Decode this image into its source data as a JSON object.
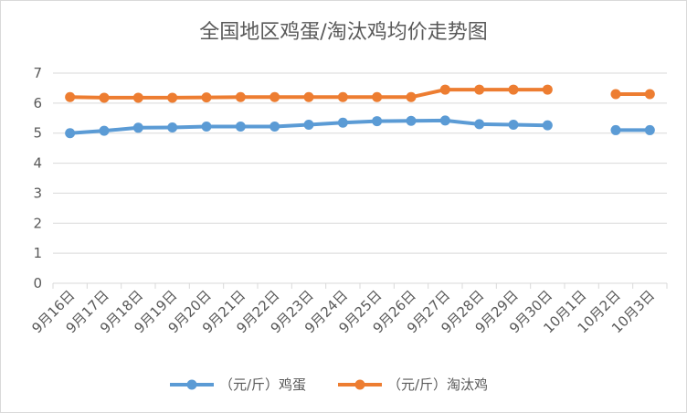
{
  "chart_data": {
    "type": "line",
    "title": "全国地区鸡蛋/淘汰鸡均价走势图",
    "categories": [
      "9月16日",
      "9月17日",
      "9月18日",
      "9月19日",
      "9月20日",
      "9月21日",
      "9月22日",
      "9月23日",
      "9月24日",
      "9月25日",
      "9月26日",
      "9月27日",
      "9月28日",
      "9月29日",
      "9月30日",
      "10月1日",
      "10月2日",
      "10月3日"
    ],
    "yticks": [
      "0",
      "1",
      "2",
      "3",
      "4",
      "5",
      "6",
      "7"
    ],
    "ylim": [
      0,
      7
    ],
    "grid": true,
    "legend_position": "bottom",
    "series": [
      {
        "name": "（元/斤）鸡蛋",
        "color": "#5b9bd5",
        "values": [
          5.0,
          5.08,
          5.18,
          5.19,
          5.22,
          5.22,
          5.22,
          5.28,
          5.35,
          5.4,
          5.41,
          5.42,
          5.3,
          5.28,
          5.26,
          null,
          5.1,
          5.1
        ]
      },
      {
        "name": "（元/斤）淘汰鸡",
        "color": "#ed7d31",
        "values": [
          6.2,
          6.18,
          6.18,
          6.18,
          6.19,
          6.2,
          6.2,
          6.2,
          6.2,
          6.2,
          6.2,
          6.45,
          6.45,
          6.45,
          6.45,
          null,
          6.3,
          6.3
        ]
      }
    ]
  }
}
